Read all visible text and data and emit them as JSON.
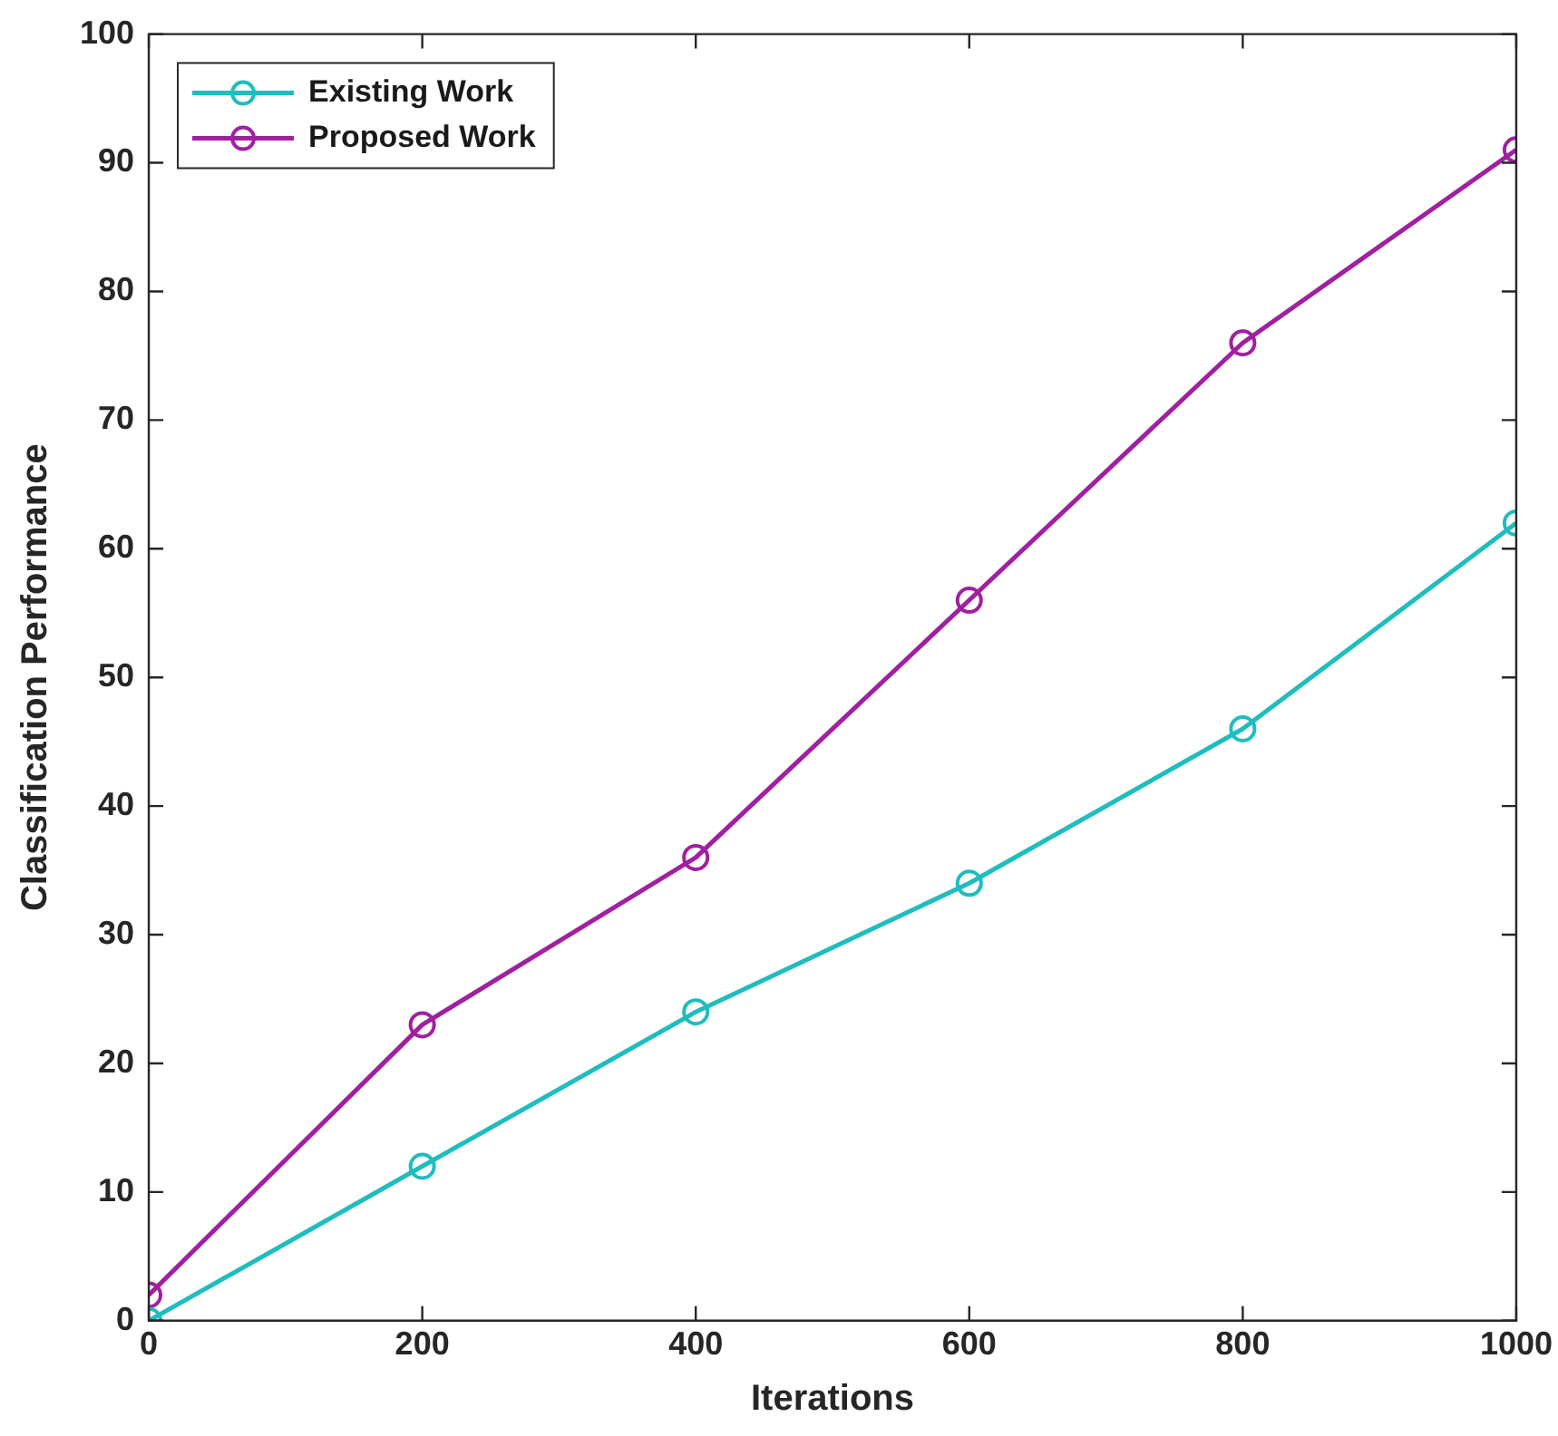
{
  "chart_data": {
    "type": "line",
    "xlabel": "Iterations",
    "ylabel": "Classification Performance",
    "x": [
      0,
      200,
      400,
      600,
      800,
      1000
    ],
    "series": [
      {
        "name": "Existing Work",
        "color": "#1fbdbd",
        "values": [
          0,
          12,
          24,
          34,
          46,
          62
        ]
      },
      {
        "name": "Proposed Work",
        "color": "#a020a0",
        "values": [
          2,
          23,
          36,
          56,
          76,
          91
        ]
      }
    ],
    "xlim": [
      0,
      1000
    ],
    "ylim": [
      0,
      100
    ],
    "xticks": [
      0,
      200,
      400,
      600,
      800,
      1000
    ],
    "yticks": [
      0,
      10,
      20,
      30,
      40,
      50,
      60,
      70,
      80,
      90,
      100
    ],
    "legend": "top left",
    "marker": "circle",
    "line_style": "solid"
  }
}
